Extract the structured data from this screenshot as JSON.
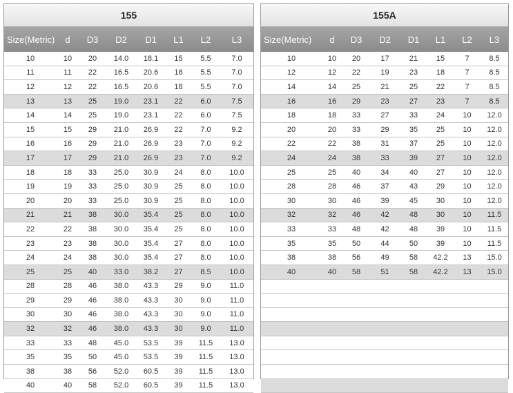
{
  "left": {
    "title": "155",
    "columns": [
      "Size(Metric)",
      "d",
      "D3",
      "D2",
      "D1",
      "L1",
      "L2",
      "L3"
    ],
    "shaded_rows": [
      3,
      7,
      11,
      15,
      19
    ],
    "rows": [
      [
        "10",
        "10",
        "20",
        "14.0",
        "18.1",
        "15",
        "5.5",
        "7.0"
      ],
      [
        "11",
        "11",
        "22",
        "16.5",
        "20.6",
        "18",
        "5.5",
        "7.0"
      ],
      [
        "12",
        "12",
        "22",
        "16.5",
        "20.6",
        "18",
        "5.5",
        "7.0"
      ],
      [
        "13",
        "13",
        "25",
        "19.0",
        "23.1",
        "22",
        "6.0",
        "7.5"
      ],
      [
        "14",
        "14",
        "25",
        "19.0",
        "23.1",
        "22",
        "6.0",
        "7.5"
      ],
      [
        "15",
        "15",
        "29",
        "21.0",
        "26.9",
        "22",
        "7.0",
        "9.2"
      ],
      [
        "16",
        "16",
        "29",
        "21.0",
        "26.9",
        "23",
        "7.0",
        "9.2"
      ],
      [
        "17",
        "17",
        "29",
        "21.0",
        "26.9",
        "23",
        "7.0",
        "9.2"
      ],
      [
        "18",
        "18",
        "33",
        "25.0",
        "30.9",
        "24",
        "8.0",
        "10.0"
      ],
      [
        "19",
        "19",
        "33",
        "25.0",
        "30.9",
        "25",
        "8.0",
        "10.0"
      ],
      [
        "20",
        "20",
        "33",
        "25.0",
        "30.9",
        "25",
        "8.0",
        "10.0"
      ],
      [
        "21",
        "21",
        "38",
        "30.0",
        "35.4",
        "25",
        "8.0",
        "10.0"
      ],
      [
        "22",
        "22",
        "38",
        "30.0",
        "35.4",
        "25",
        "8.0",
        "10.0"
      ],
      [
        "23",
        "23",
        "38",
        "30.0",
        "35.4",
        "27",
        "8.0",
        "10.0"
      ],
      [
        "24",
        "24",
        "38",
        "30.0",
        "35.4",
        "27",
        "8.0",
        "10.0"
      ],
      [
        "25",
        "25",
        "40",
        "33.0",
        "38.2",
        "27",
        "8.5",
        "10.0"
      ],
      [
        "28",
        "28",
        "46",
        "38.0",
        "43.3",
        "29",
        "9.0",
        "11.0"
      ],
      [
        "29",
        "29",
        "46",
        "38.0",
        "43.3",
        "30",
        "9.0",
        "11.0"
      ],
      [
        "30",
        "30",
        "46",
        "38.0",
        "43.3",
        "30",
        "9.0",
        "11.0"
      ],
      [
        "32",
        "32",
        "46",
        "38.0",
        "43.3",
        "30",
        "9.0",
        "11.0"
      ],
      [
        "33",
        "33",
        "48",
        "45.0",
        "53.5",
        "39",
        "11.5",
        "13.0"
      ],
      [
        "35",
        "35",
        "50",
        "45.0",
        "53.5",
        "39",
        "11.5",
        "13.0"
      ],
      [
        "38",
        "38",
        "56",
        "52.0",
        "60.5",
        "39",
        "11.5",
        "13.0"
      ],
      [
        "40",
        "40",
        "58",
        "52.0",
        "60.5",
        "39",
        "11.5",
        "13.0"
      ]
    ]
  },
  "right": {
    "title": "155A",
    "columns": [
      "Size(Metric)",
      "d",
      "D3",
      "D2",
      "D1",
      "L1",
      "L2",
      "L3"
    ],
    "shaded_rows": [
      3,
      7,
      11,
      15,
      19,
      23
    ],
    "rows": [
      [
        "10",
        "10",
        "20",
        "17",
        "21",
        "15",
        "7",
        "8.5"
      ],
      [
        "12",
        "12",
        "22",
        "19",
        "23",
        "18",
        "7",
        "8.5"
      ],
      [
        "14",
        "14",
        "25",
        "21",
        "25",
        "22",
        "7",
        "8.5"
      ],
      [
        "16",
        "16",
        "29",
        "23",
        "27",
        "23",
        "7",
        "8.5"
      ],
      [
        "18",
        "18",
        "33",
        "27",
        "33",
        "24",
        "10",
        "12.0"
      ],
      [
        "20",
        "20",
        "33",
        "29",
        "35",
        "25",
        "10",
        "12.0"
      ],
      [
        "22",
        "22",
        "38",
        "31",
        "37",
        "25",
        "10",
        "12.0"
      ],
      [
        "24",
        "24",
        "38",
        "33",
        "39",
        "27",
        "10",
        "12.0"
      ],
      [
        "25",
        "25",
        "40",
        "34",
        "40",
        "27",
        "10",
        "12.0"
      ],
      [
        "28",
        "28",
        "46",
        "37",
        "43",
        "29",
        "10",
        "12.0"
      ],
      [
        "30",
        "30",
        "46",
        "39",
        "45",
        "30",
        "10",
        "12.0"
      ],
      [
        "32",
        "32",
        "46",
        "42",
        "48",
        "30",
        "10",
        "11.5"
      ],
      [
        "33",
        "33",
        "48",
        "42",
        "48",
        "39",
        "10",
        "11.5"
      ],
      [
        "35",
        "35",
        "50",
        "44",
        "50",
        "39",
        "10",
        "11.5"
      ],
      [
        "38",
        "38",
        "56",
        "49",
        "58",
        "42.2",
        "13",
        "15.0"
      ],
      [
        "40",
        "40",
        "58",
        "51",
        "58",
        "42.2",
        "13",
        "15.0"
      ]
    ],
    "total_rows": 24
  }
}
